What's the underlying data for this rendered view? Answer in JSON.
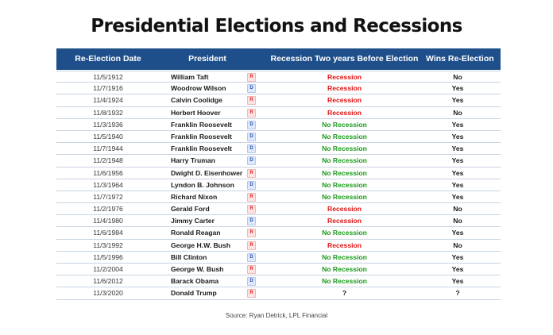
{
  "title": "Presidential Elections and Recessions",
  "columns": {
    "date": "Re-Election Date",
    "president": "President",
    "recession": "Recession Two years Before Election",
    "wins": "Wins Re-Election"
  },
  "rows": [
    {
      "date": "11/5/1912",
      "president": "William Taft",
      "party": "R",
      "recession": "Recession",
      "wins": "No"
    },
    {
      "date": "11/7/1916",
      "president": "Woodrow Wilson",
      "party": "D",
      "recession": "Recession",
      "wins": "Yes"
    },
    {
      "date": "11/4/1924",
      "president": "Calvin Coolidge",
      "party": "R",
      "recession": "Recession",
      "wins": "Yes"
    },
    {
      "date": "11/8/1932",
      "president": "Herbert Hoover",
      "party": "R",
      "recession": "Recession",
      "wins": "No"
    },
    {
      "date": "11/3/1936",
      "president": "Franklin Roosevelt",
      "party": "D",
      "recession": "No Recession",
      "wins": "Yes"
    },
    {
      "date": "11/5/1940",
      "president": "Franklin Roosevelt",
      "party": "D",
      "recession": "No Recession",
      "wins": "Yes"
    },
    {
      "date": "11/7/1944",
      "president": "Franklin Roosevelt",
      "party": "D",
      "recession": "No Recession",
      "wins": "Yes"
    },
    {
      "date": "11/2/1948",
      "president": "Harry Truman",
      "party": "D",
      "recession": "No Recession",
      "wins": "Yes"
    },
    {
      "date": "11/6/1956",
      "president": "Dwight D. Eisenhower",
      "party": "R",
      "recession": "No Recession",
      "wins": "Yes"
    },
    {
      "date": "11/3/1964",
      "president": "Lyndon B. Johnson",
      "party": "D",
      "recession": "No Recession",
      "wins": "Yes"
    },
    {
      "date": "11/7/1972",
      "president": "Richard Nixon",
      "party": "R",
      "recession": "No Recession",
      "wins": "Yes"
    },
    {
      "date": "11/2/1976",
      "president": "Gerald Ford",
      "party": "R",
      "recession": "Recession",
      "wins": "No"
    },
    {
      "date": "11/4/1980",
      "president": "Jimmy Carter",
      "party": "D",
      "recession": "Recession",
      "wins": "No"
    },
    {
      "date": "11/6/1984",
      "president": "Ronald Reagan",
      "party": "R",
      "recession": "No Recession",
      "wins": "Yes"
    },
    {
      "date": "11/3/1992",
      "president": "George H.W. Bush",
      "party": "R",
      "recession": "Recession",
      "wins": "No"
    },
    {
      "date": "11/5/1996",
      "president": "Bill Clinton",
      "party": "D",
      "recession": "No Recession",
      "wins": "Yes"
    },
    {
      "date": "11/2/2004",
      "president": "George W. Bush",
      "party": "R",
      "recession": "No Recession",
      "wins": "Yes"
    },
    {
      "date": "11/6/2012",
      "president": "Barack Obama",
      "party": "D",
      "recession": "No Recession",
      "wins": "Yes"
    },
    {
      "date": "11/3/2020",
      "president": "Donald Trump",
      "party": "R",
      "recession": "?",
      "wins": "?"
    }
  ],
  "source": "Source: Ryan Detrick, LPL Financial",
  "colors": {
    "header_bg": "#1f4f8a",
    "recession": "#e01010",
    "no_recession": "#1a9a1a",
    "party_R": "#d21f1f",
    "party_D": "#1d4fb1"
  }
}
